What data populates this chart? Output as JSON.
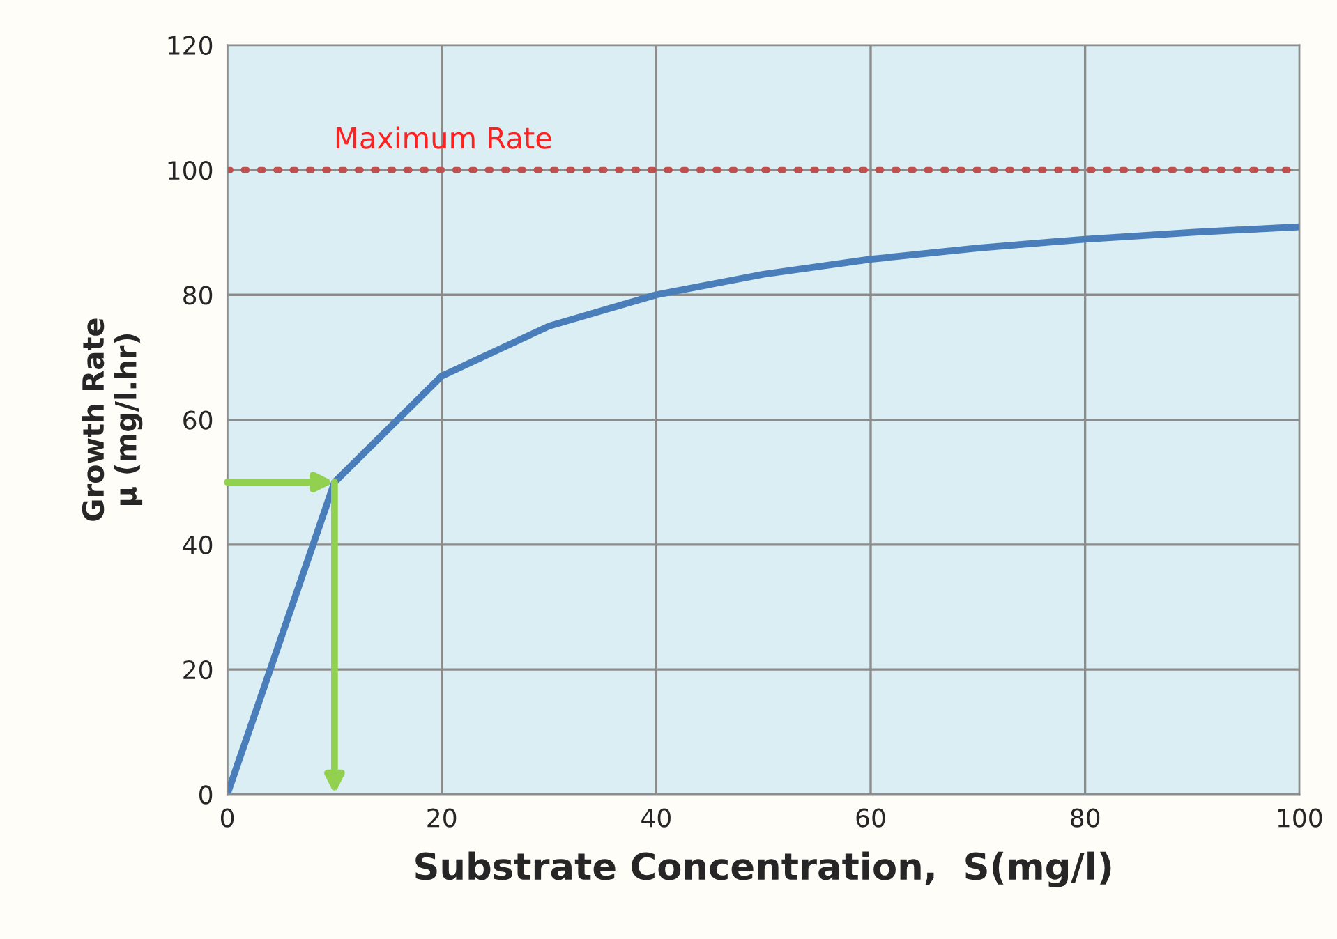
{
  "chart_data": {
    "type": "line",
    "xlabel": "Substrate Concentration,  S(mg/l)",
    "ylabel": "Growth Rate\nμ (mg/l.hr)",
    "x": [
      0,
      10,
      20,
      30,
      40,
      50,
      60,
      70,
      80,
      90,
      100
    ],
    "series": [
      {
        "color": "#4a7ebb",
        "values": [
          0,
          50,
          67,
          75,
          80,
          83.3,
          85.7,
          87.5,
          88.9,
          90,
          90.9
        ]
      }
    ],
    "xlim": [
      0,
      100
    ],
    "xticks": [
      0,
      20,
      40,
      60,
      80,
      100
    ],
    "ylim": [
      0,
      120
    ],
    "yticks": [
      0,
      20,
      40,
      60,
      80,
      100,
      120
    ],
    "ref_lines": [
      {
        "axis": "y",
        "value": 100,
        "label": "Maximum Rate",
        "color": "#c0504d",
        "line_style": "dotted"
      }
    ],
    "grid": true,
    "legend": false,
    "marker": "none",
    "line_style": "solid"
  }
}
